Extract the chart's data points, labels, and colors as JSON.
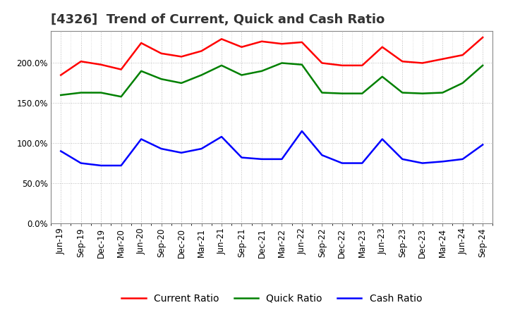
{
  "title": "[4326]  Trend of Current, Quick and Cash Ratio",
  "background_color": "#ffffff",
  "grid_color": "#aaaaaa",
  "x_labels": [
    "Jun-19",
    "Sep-19",
    "Dec-19",
    "Mar-20",
    "Jun-20",
    "Sep-20",
    "Dec-20",
    "Mar-21",
    "Jun-21",
    "Sep-21",
    "Dec-21",
    "Mar-22",
    "Jun-22",
    "Sep-22",
    "Dec-22",
    "Mar-23",
    "Jun-23",
    "Sep-23",
    "Dec-23",
    "Mar-24",
    "Jun-24",
    "Sep-24"
  ],
  "current_ratio": [
    185,
    202,
    198,
    192,
    225,
    212,
    208,
    215,
    230,
    220,
    227,
    224,
    226,
    200,
    197,
    197,
    220,
    202,
    200,
    205,
    210,
    232
  ],
  "quick_ratio": [
    160,
    163,
    163,
    158,
    190,
    180,
    175,
    185,
    197,
    185,
    190,
    200,
    198,
    163,
    162,
    162,
    183,
    163,
    162,
    163,
    175,
    197
  ],
  "cash_ratio": [
    90,
    75,
    72,
    72,
    105,
    93,
    88,
    93,
    108,
    82,
    80,
    80,
    115,
    85,
    75,
    75,
    105,
    80,
    75,
    77,
    80,
    98
  ],
  "current_color": "#ff0000",
  "quick_color": "#008000",
  "cash_color": "#0000ff",
  "ylim": [
    0,
    240
  ],
  "yticks": [
    0,
    50,
    100,
    150,
    200
  ],
  "title_fontsize": 13,
  "tick_fontsize": 8.5,
  "legend_fontsize": 10
}
